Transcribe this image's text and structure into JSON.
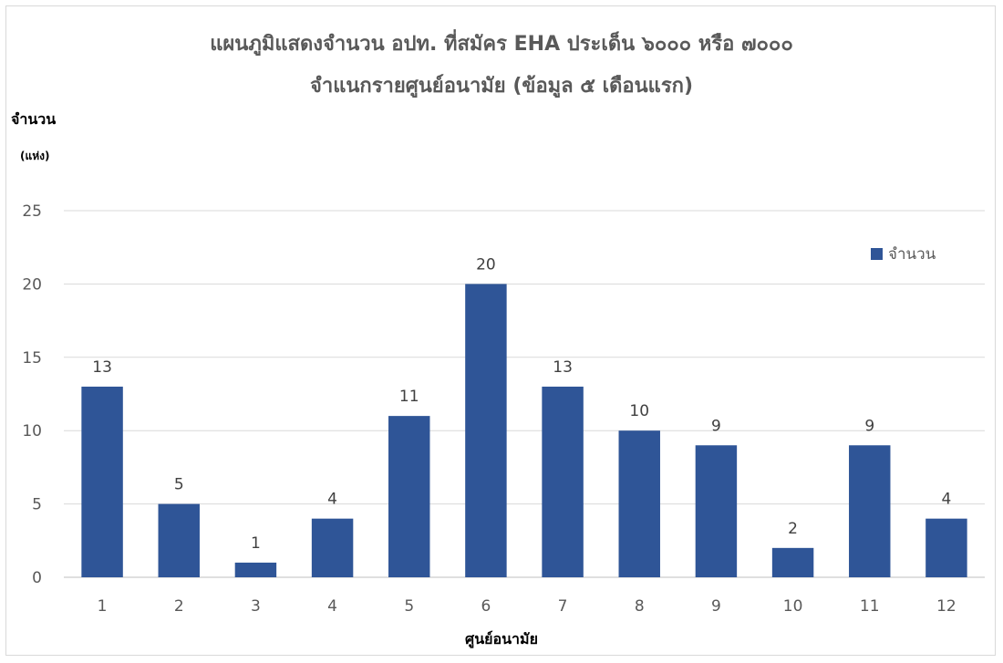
{
  "chart_data": {
    "type": "bar",
    "title_line1": "แผนภูมิแสดงจำนวน อปท. ที่สมัคร EHA ประเด็น ๖๐๐๐ หรือ ๗๐๐๐",
    "title_line2": "จำแนกรายศูนย์อนามัย (ข้อมูล ๕ เดือนแรก)",
    "ylabel_line1": "จำนวน",
    "ylabel_line2": "(แห่ง)",
    "xlabel": "ศูนย์อนามัย",
    "categories": [
      "1",
      "2",
      "3",
      "4",
      "5",
      "6",
      "7",
      "8",
      "9",
      "10",
      "11",
      "12"
    ],
    "series": [
      {
        "name": "จำนวน",
        "values": [
          13,
          5,
          1,
          4,
          11,
          20,
          13,
          10,
          9,
          2,
          9,
          4
        ],
        "color": "#2f5597"
      }
    ],
    "ylim": [
      0,
      25
    ],
    "yticks": [
      0,
      5,
      10,
      15,
      20,
      25
    ],
    "grid": true,
    "legend_position": "top-right",
    "data_labels": true
  }
}
